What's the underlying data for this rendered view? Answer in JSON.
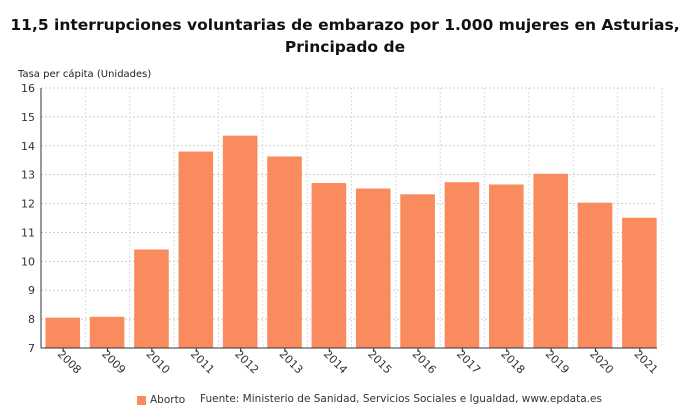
{
  "chart_data": {
    "type": "bar",
    "title": "11,5 interrupciones voluntarias de embarazo por 1.000 mujeres en Asturias, Principado de",
    "ylabel": "Tasa per cápita (Unidades)",
    "xlabel": "",
    "categories": [
      "2008",
      "2009",
      "2010",
      "2011",
      "2012",
      "2013",
      "2014",
      "2015",
      "2016",
      "2017",
      "2018",
      "2019",
      "2020",
      "2021"
    ],
    "series": [
      {
        "name": "Aborto",
        "values": [
          8.05,
          8.08,
          10.41,
          13.8,
          14.35,
          13.63,
          12.71,
          12.52,
          12.32,
          12.74,
          12.66,
          13.03,
          12.03,
          11.51
        ],
        "color": "#f98b5f"
      }
    ],
    "ylim": [
      7,
      16
    ],
    "yticks": [
      7,
      8,
      9,
      10,
      11,
      12,
      13,
      14,
      15,
      16
    ],
    "grid": true,
    "legend": "bottom-left"
  },
  "source": "Fuente: Ministerio de Sanidad, Servicios Sociales e Igualdad, www.epdata.es"
}
